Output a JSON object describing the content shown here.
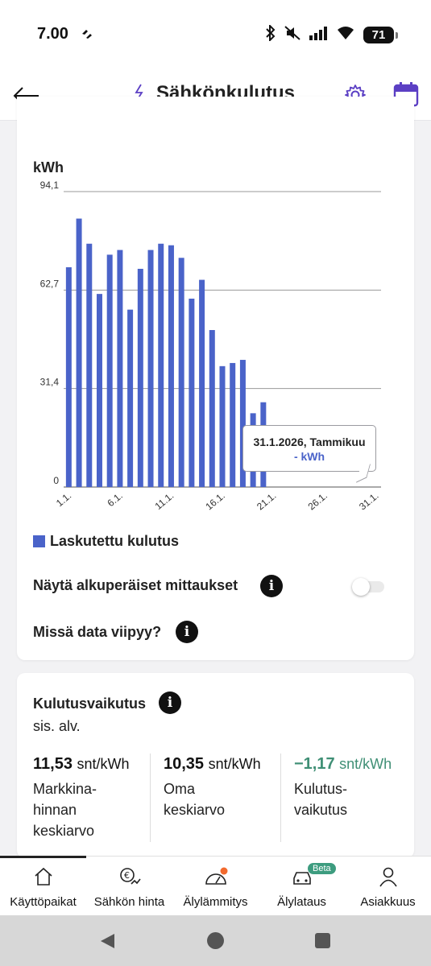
{
  "status_bar": {
    "time": "7.00",
    "battery": "71"
  },
  "header": {
    "title": "Sähkönkulutus"
  },
  "chart_card": {
    "unit_label": "kWh",
    "legend": "Laskutettu kulutus",
    "toggle_label": "Näytä alkuperäiset mittaukset",
    "toggle_on": false,
    "delay_label": "Missä data viipyy?",
    "tooltip": {
      "title": "31.1.2026, Tammikuu",
      "value": "- kWh"
    }
  },
  "chart_data": {
    "type": "bar",
    "ylabel": "kWh",
    "ylim": [
      0,
      94.1
    ],
    "y_ticks": [
      "0",
      "31,4",
      "62,7",
      "94,1"
    ],
    "x_tick_labels": [
      "1.1.",
      "6.1.",
      "11.1.",
      "16.1.",
      "21.1.",
      "26.1.",
      "31.1."
    ],
    "categories": [
      "1.1.",
      "2.1.",
      "3.1.",
      "4.1.",
      "5.1.",
      "6.1.",
      "7.1.",
      "8.1.",
      "9.1.",
      "10.1.",
      "11.1.",
      "12.1.",
      "13.1.",
      "14.1.",
      "15.1.",
      "16.1.",
      "17.1.",
      "18.1.",
      "19.1.",
      "20.1.",
      "21.1.",
      "22.1.",
      "23.1.",
      "24.1.",
      "25.1.",
      "26.1.",
      "27.1.",
      "28.1.",
      "29.1.",
      "30.1.",
      "31.1."
    ],
    "series": [
      {
        "name": "Laskutettu kulutus",
        "color": "#4a63c9",
        "values": [
          70,
          85.5,
          77.5,
          61.5,
          74,
          75.5,
          56.5,
          69.5,
          75.5,
          77.5,
          77,
          73,
          60,
          66,
          50,
          38.5,
          39.5,
          40.5,
          23.5,
          27,
          null,
          null,
          null,
          null,
          null,
          null,
          null,
          null,
          null,
          null,
          null
        ]
      }
    ],
    "grid": true,
    "legend_position": "bottom-left"
  },
  "effect_card": {
    "title": "Kulutusvaikutus",
    "subtitle": "sis. alv.",
    "metrics": [
      {
        "value": "11,53",
        "unit": "snt/kWh",
        "label_lines": [
          "Markkina-",
          "hinnan",
          "keskiarvo"
        ]
      },
      {
        "value": "10,35",
        "unit": "snt/kWh",
        "label_lines": [
          "Oma",
          "keskiarvo"
        ]
      },
      {
        "value": "−1,17",
        "unit": "snt/kWh",
        "label_lines": [
          "Kulutus-",
          "vaikutus"
        ],
        "color": "#3f8f75"
      }
    ]
  },
  "bottom_nav": {
    "items": [
      {
        "label": "Käyttöpaikat",
        "icon": "home-icon",
        "active": true
      },
      {
        "label": "Sähkön hinta",
        "icon": "price-icon"
      },
      {
        "label": "Älylämmitys",
        "icon": "gauge-icon"
      },
      {
        "label": "Älylataus",
        "icon": "car-charging-icon",
        "badge": "Beta"
      },
      {
        "label": "Asiakkuus",
        "icon": "person-icon"
      }
    ]
  },
  "colors": {
    "accent": "#5b3fc4",
    "bar": "#4a63c9",
    "negative": "#3f8f75"
  }
}
